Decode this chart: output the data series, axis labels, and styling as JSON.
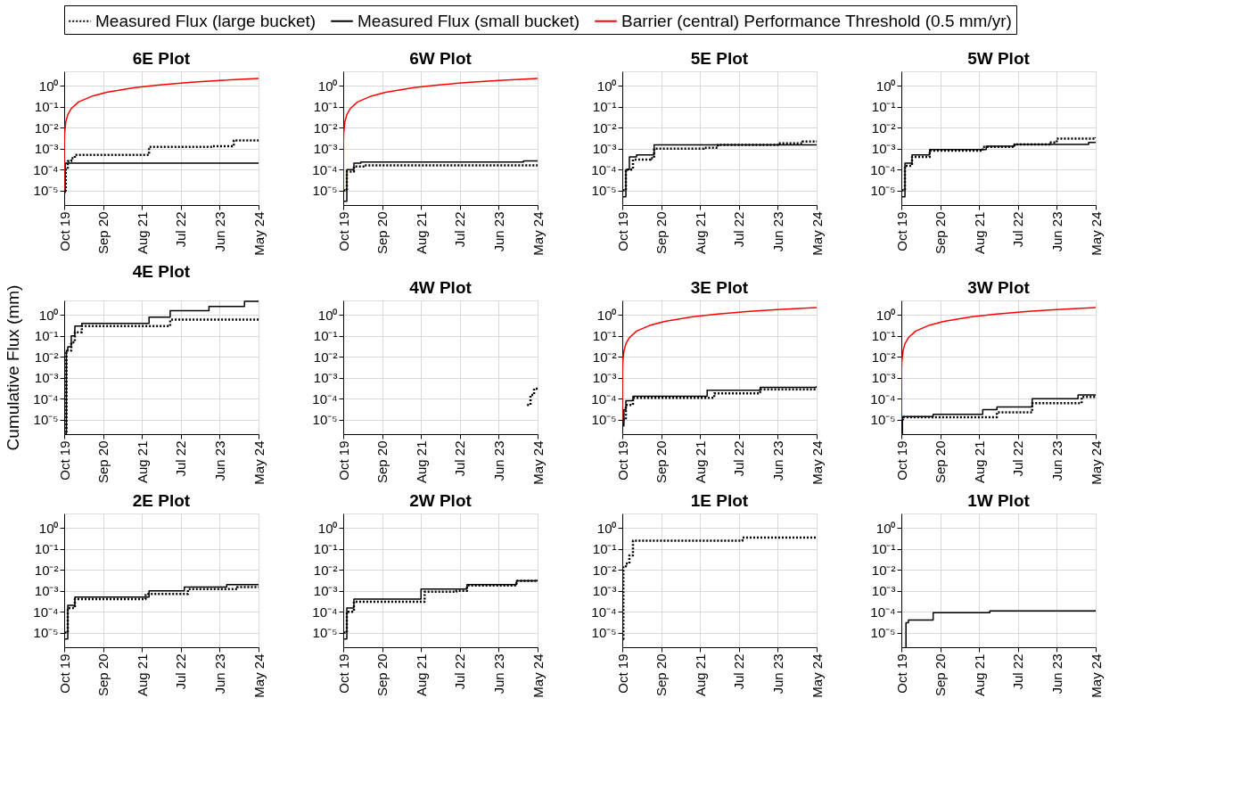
{
  "chart_data": [
    {
      "type": "step",
      "title": "6E Plot",
      "legend": "top",
      "grid": true,
      "log": "y",
      "xlim": [
        "2019-10",
        "2024-05"
      ],
      "ylim": [
        2e-06,
        5
      ],
      "xticks": [
        {
          "value": "2019-10",
          "label": "Oct 19"
        },
        {
          "value": "2020-09",
          "label": "Sep 20"
        },
        {
          "value": "2021-08",
          "label": "Aug 21"
        },
        {
          "value": "2022-07",
          "label": "Jul 22"
        },
        {
          "value": "2023-06",
          "label": "Jun 23"
        },
        {
          "value": "2024-05",
          "label": "May 24"
        }
      ],
      "yticks": [
        {
          "value": 1e-05,
          "label": "10⁻⁵"
        },
        {
          "value": 0.0001,
          "label": "10⁻⁴"
        },
        {
          "value": 0.001,
          "label": "10⁻³"
        },
        {
          "value": 0.01,
          "label": "10⁻²"
        },
        {
          "value": 0.1,
          "label": "10⁻¹"
        },
        {
          "value": 1,
          "label": "10⁰"
        }
      ],
      "series": [
        {
          "name": "Measured Flux (large bucket)",
          "color": "#000000",
          "line_style": "dotted",
          "x": [
            "2019-10-05",
            "2019-10-15",
            "2019-11",
            "2019-12",
            "2020-01",
            "2021-08",
            "2021-10",
            "2023-04",
            "2023-10",
            "2024-05"
          ],
          "values": [
            1e-05,
            0.0001,
            0.00025,
            0.00035,
            0.0005,
            0.0005,
            0.0012,
            0.0013,
            0.0025,
            0.0025
          ]
        },
        {
          "name": "Measured Flux (small bucket)",
          "color": "#000000",
          "line_style": "solid",
          "x": [
            "2019-10-03",
            "2019-10-10",
            "2024-05"
          ],
          "values": [
            8e-06,
            0.0002,
            0.0002
          ]
        },
        {
          "name": "Barrier (central) Performance Threshold (0.5 mm/yr)",
          "type": "line",
          "color": "#ff0000",
          "line_style": "solid",
          "x": [
            "2019-10-01",
            "2019-10-02",
            "2019-10-05",
            "2019-10-15",
            "2019-11-01",
            "2019-12-01",
            "2020-02-01",
            "2020-06-01",
            "2020-10-01",
            "2021-06-01",
            "2022-01-01",
            "2022-10-01",
            "2023-06-01",
            "2024-05-01"
          ],
          "values": [
            1e-05,
            0.0014,
            0.0055,
            0.019,
            0.042,
            0.083,
            0.17,
            0.33,
            0.5,
            0.83,
            1.13,
            1.5,
            1.83,
            2.29
          ]
        }
      ]
    },
    {
      "type": "step",
      "title": "6W Plot",
      "grid": true,
      "log": "y",
      "xlim": [
        "2019-10",
        "2024-05"
      ],
      "ylim": [
        2e-06,
        5
      ],
      "xticks": [
        {
          "value": "2019-10",
          "label": "Oct 19"
        },
        {
          "value": "2020-09",
          "label": "Sep 20"
        },
        {
          "value": "2021-08",
          "label": "Aug 21"
        },
        {
          "value": "2022-07",
          "label": "Jul 22"
        },
        {
          "value": "2023-06",
          "label": "Jun 23"
        },
        {
          "value": "2024-05",
          "label": "May 24"
        }
      ],
      "yticks": [
        {
          "value": 1e-05,
          "label": "10⁻⁵"
        },
        {
          "value": 0.0001,
          "label": "10⁻⁴"
        },
        {
          "value": 0.001,
          "label": "10⁻³"
        },
        {
          "value": 0.01,
          "label": "10⁻²"
        },
        {
          "value": 0.1,
          "label": "10⁻¹"
        },
        {
          "value": 1,
          "label": "10⁰"
        }
      ],
      "series": [
        {
          "color": "#000000",
          "line_style": "dotted",
          "x": [
            "2019-10-05",
            "2019-11",
            "2020-01",
            "2020-04",
            "2024-01",
            "2024-05"
          ],
          "values": [
            1e-05,
            8e-05,
            0.00014,
            0.00016,
            0.00016,
            0.0002
          ]
        },
        {
          "color": "#000000",
          "line_style": "solid",
          "x": [
            "2019-10-02",
            "2019-11",
            "2020-01",
            "2020-03",
            "2024-01",
            "2024-05"
          ],
          "values": [
            3e-06,
            0.0001,
            0.0002,
            0.00023,
            0.00026,
            0.00026
          ]
        },
        {
          "type": "line",
          "color": "#ff0000",
          "line_style": "solid",
          "x": [
            "2019-10-01",
            "2019-10-02",
            "2019-10-05",
            "2019-10-15",
            "2019-11-01",
            "2019-12-01",
            "2020-02-01",
            "2020-06-01",
            "2020-10-01",
            "2021-06-01",
            "2022-01-01",
            "2022-10-01",
            "2023-06-01",
            "2024-05-01"
          ],
          "values": [
            1e-05,
            0.0014,
            0.0055,
            0.019,
            0.042,
            0.083,
            0.17,
            0.33,
            0.5,
            0.83,
            1.13,
            1.5,
            1.83,
            2.29
          ]
        }
      ]
    },
    {
      "type": "step",
      "title": "5E Plot",
      "grid": true,
      "log": "y",
      "xlim": [
        "2019-10",
        "2024-05"
      ],
      "ylim": [
        2e-06,
        5
      ],
      "xticks": [
        {
          "value": "2019-10",
          "label": "Oct 19"
        },
        {
          "value": "2020-09",
          "label": "Sep 20"
        },
        {
          "value": "2021-08",
          "label": "Aug 21"
        },
        {
          "value": "2022-07",
          "label": "Jul 22"
        },
        {
          "value": "2023-06",
          "label": "Jun 23"
        },
        {
          "value": "2024-05",
          "label": "May 24"
        }
      ],
      "yticks": [
        {
          "value": 1e-05,
          "label": "10⁻⁵"
        },
        {
          "value": 0.0001,
          "label": "10⁻⁴"
        },
        {
          "value": 0.001,
          "label": "10⁻³"
        },
        {
          "value": 0.01,
          "label": "10⁻²"
        },
        {
          "value": 0.1,
          "label": "10⁻¹"
        },
        {
          "value": 1,
          "label": "10⁰"
        }
      ],
      "series": [
        {
          "color": "#000000",
          "line_style": "dotted",
          "x": [
            "2019-10-05",
            "2019-11",
            "2020-01",
            "2020-06",
            "2020-07",
            "2021-09",
            "2022-01",
            "2023-06",
            "2024-01",
            "2024-05"
          ],
          "values": [
            1e-05,
            0.0001,
            0.0003,
            0.00035,
            0.001,
            0.0011,
            0.0015,
            0.0018,
            0.0022,
            0.0023
          ]
        },
        {
          "color": "#000000",
          "line_style": "solid",
          "x": [
            "2019-10-01",
            "2019-11",
            "2019-12",
            "2020-02",
            "2020-06",
            "2020-07",
            "2024-05"
          ],
          "values": [
            5e-06,
            0.0001,
            0.0004,
            0.0005,
            0.0005,
            0.0015,
            0.0015
          ]
        }
      ]
    },
    {
      "type": "step",
      "title": "5W Plot",
      "grid": true,
      "log": "y",
      "xlim": [
        "2019-10",
        "2024-05"
      ],
      "ylim": [
        2e-06,
        5
      ],
      "xticks": [
        {
          "value": "2019-10",
          "label": "Oct 19"
        },
        {
          "value": "2020-09",
          "label": "Sep 20"
        },
        {
          "value": "2021-08",
          "label": "Aug 21"
        },
        {
          "value": "2022-07",
          "label": "Jul 22"
        },
        {
          "value": "2023-06",
          "label": "Jun 23"
        },
        {
          "value": "2024-05",
          "label": "May 24"
        }
      ],
      "yticks": [
        {
          "value": 1e-05,
          "label": "10⁻⁵"
        },
        {
          "value": 0.0001,
          "label": "10⁻⁴"
        },
        {
          "value": 0.001,
          "label": "10⁻³"
        },
        {
          "value": 0.01,
          "label": "10⁻²"
        },
        {
          "value": 0.1,
          "label": "10⁻¹"
        },
        {
          "value": 1,
          "label": "10⁰"
        }
      ],
      "series": [
        {
          "color": "#000000",
          "line_style": "dotted",
          "x": [
            "2019-10-05",
            "2019-11",
            "2020-01",
            "2020-06",
            "2021-06",
            "2021-09",
            "2022-06",
            "2023-04",
            "2023-06",
            "2024-05"
          ],
          "values": [
            1e-05,
            0.00015,
            0.0004,
            0.0008,
            0.0008,
            0.0012,
            0.0016,
            0.002,
            0.003,
            0.0035
          ]
        },
        {
          "color": "#000000",
          "line_style": "solid",
          "x": [
            "2019-10-01",
            "2019-11",
            "2020-01",
            "2020-06",
            "2021-06",
            "2021-10",
            "2022-06",
            "2024-01",
            "2024-03",
            "2024-05"
          ],
          "values": [
            5e-06,
            0.0002,
            0.0005,
            0.0009,
            0.0009,
            0.0013,
            0.0016,
            0.0016,
            0.002,
            0.002
          ]
        }
      ]
    },
    {
      "type": "step",
      "title": "4E Plot",
      "ylabel": "Cumulative Flux (mm)",
      "grid": true,
      "log": "y",
      "xlim": [
        "2019-10",
        "2024-05"
      ],
      "ylim": [
        2e-06,
        5
      ],
      "xticks": [
        {
          "value": "2019-10",
          "label": "Oct 19"
        },
        {
          "value": "2020-09",
          "label": "Sep 20"
        },
        {
          "value": "2021-08",
          "label": "Aug 21"
        },
        {
          "value": "2022-07",
          "label": "Jul 22"
        },
        {
          "value": "2023-06",
          "label": "Jun 23"
        },
        {
          "value": "2024-05",
          "label": "May 24"
        }
      ],
      "yticks": [
        {
          "value": 1e-05,
          "label": "10⁻⁵"
        },
        {
          "value": 0.0001,
          "label": "10⁻⁴"
        },
        {
          "value": 0.001,
          "label": "10⁻³"
        },
        {
          "value": 0.01,
          "label": "10⁻²"
        },
        {
          "value": 0.1,
          "label": "10⁻¹"
        },
        {
          "value": 1,
          "label": "10⁰"
        }
      ],
      "series": [
        {
          "color": "#000000",
          "line_style": "dotted",
          "x": [
            "2019-10-05",
            "2019-10-20",
            "2019-12",
            "2020-01",
            "2020-03",
            "2022-04",
            "2024-05"
          ],
          "values": [
            2e-06,
            0.02,
            0.05,
            0.15,
            0.3,
            0.6,
            0.6
          ]
        },
        {
          "color": "#000000",
          "line_style": "solid",
          "x": [
            "2019-10-05",
            "2019-10-20",
            "2019-11",
            "2019-12",
            "2020-01",
            "2020-03",
            "2021-10",
            "2022-04",
            "2023-03",
            "2024-01",
            "2024-05"
          ],
          "values": [
            2e-06,
            0.02,
            0.03,
            0.1,
            0.3,
            0.4,
            0.8,
            1.6,
            2.6,
            4.5,
            4.5
          ]
        }
      ]
    },
    {
      "type": "step",
      "title": "4W Plot",
      "grid": true,
      "log": "y",
      "xlim": [
        "2019-10",
        "2024-05"
      ],
      "ylim": [
        2e-06,
        5
      ],
      "xticks": [
        {
          "value": "2019-10",
          "label": "Oct 19"
        },
        {
          "value": "2020-09",
          "label": "Sep 20"
        },
        {
          "value": "2021-08",
          "label": "Aug 21"
        },
        {
          "value": "2022-07",
          "label": "Jul 22"
        },
        {
          "value": "2023-06",
          "label": "Jun 23"
        },
        {
          "value": "2024-05",
          "label": "May 24"
        }
      ],
      "yticks": [
        {
          "value": 1e-05,
          "label": "10⁻⁵"
        },
        {
          "value": 0.0001,
          "label": "10⁻⁴"
        },
        {
          "value": 0.001,
          "label": "10⁻³"
        },
        {
          "value": 0.01,
          "label": "10⁻²"
        },
        {
          "value": 0.1,
          "label": "10⁻¹"
        },
        {
          "value": 1,
          "label": "10⁰"
        }
      ],
      "series": [
        {
          "color": "#000000",
          "line_style": "dotted",
          "x": [
            "2024-02",
            "2024-03",
            "2024-04",
            "2024-05"
          ],
          "values": [
            5e-05,
            0.00015,
            0.0003,
            0.0003
          ]
        }
      ]
    },
    {
      "type": "step",
      "title": "3E Plot",
      "grid": true,
      "log": "y",
      "xlim": [
        "2019-10",
        "2024-05"
      ],
      "ylim": [
        2e-06,
        5
      ],
      "xticks": [
        {
          "value": "2019-10",
          "label": "Oct 19"
        },
        {
          "value": "2020-09",
          "label": "Sep 20"
        },
        {
          "value": "2021-08",
          "label": "Aug 21"
        },
        {
          "value": "2022-07",
          "label": "Jul 22"
        },
        {
          "value": "2023-06",
          "label": "Jun 23"
        },
        {
          "value": "2024-05",
          "label": "May 24"
        }
      ],
      "yticks": [
        {
          "value": 1e-05,
          "label": "10⁻⁵"
        },
        {
          "value": 0.0001,
          "label": "10⁻⁴"
        },
        {
          "value": 0.001,
          "label": "10⁻³"
        },
        {
          "value": 0.01,
          "label": "10⁻²"
        },
        {
          "value": 0.1,
          "label": "10⁻¹"
        },
        {
          "value": 1,
          "label": "10⁰"
        }
      ],
      "series": [
        {
          "color": "#000000",
          "line_style": "dotted",
          "x": [
            "2019-10-05",
            "2019-11",
            "2020-01",
            "2021-09",
            "2021-12",
            "2022-10",
            "2023-01",
            "2024-05"
          ],
          "values": [
            1e-05,
            5e-05,
            0.00011,
            0.00011,
            0.00018,
            0.00018,
            0.00028,
            0.0003
          ]
        },
        {
          "color": "#000000",
          "line_style": "solid",
          "x": [
            "2019-10-01",
            "2019-10-15",
            "2019-11",
            "2020-01",
            "2021-06",
            "2021-10",
            "2022-10",
            "2023-01",
            "2024-05"
          ],
          "values": [
            5e-06,
            3e-05,
            8e-05,
            0.00013,
            0.00013,
            0.00025,
            0.00025,
            0.00035,
            0.0004
          ]
        },
        {
          "type": "line",
          "color": "#ff0000",
          "line_style": "solid",
          "x": [
            "2019-10-01",
            "2019-10-02",
            "2019-10-05",
            "2019-10-15",
            "2019-11-01",
            "2019-12-01",
            "2020-02-01",
            "2020-06-01",
            "2020-10-01",
            "2021-06-01",
            "2022-01-01",
            "2022-10-01",
            "2023-06-01",
            "2024-05-01"
          ],
          "values": [
            1e-05,
            0.0014,
            0.0055,
            0.019,
            0.042,
            0.083,
            0.17,
            0.33,
            0.5,
            0.83,
            1.13,
            1.5,
            1.83,
            2.29
          ]
        }
      ]
    },
    {
      "type": "step",
      "title": "3W Plot",
      "grid": true,
      "log": "y",
      "xlim": [
        "2019-10",
        "2024-05"
      ],
      "ylim": [
        2e-06,
        5
      ],
      "xticks": [
        {
          "value": "2019-10",
          "label": "Oct 19"
        },
        {
          "value": "2020-09",
          "label": "Sep 20"
        },
        {
          "value": "2021-08",
          "label": "Aug 21"
        },
        {
          "value": "2022-07",
          "label": "Jul 22"
        },
        {
          "value": "2023-06",
          "label": "Jun 23"
        },
        {
          "value": "2024-05",
          "label": "May 24"
        }
      ],
      "yticks": [
        {
          "value": 1e-05,
          "label": "10⁻⁵"
        },
        {
          "value": 0.0001,
          "label": "10⁻⁴"
        },
        {
          "value": 0.001,
          "label": "10⁻³"
        },
        {
          "value": 0.01,
          "label": "10⁻²"
        },
        {
          "value": 0.1,
          "label": "10⁻¹"
        },
        {
          "value": 1,
          "label": "10⁰"
        }
      ],
      "series": [
        {
          "color": "#000000",
          "line_style": "dotted",
          "x": [
            "2019-10-05",
            "2019-10-15",
            "2021-12",
            "2022-01",
            "2022-10",
            "2022-11",
            "2023-11",
            "2024-01",
            "2024-05"
          ],
          "values": [
            1e-05,
            1.3e-05,
            1.3e-05,
            2.2e-05,
            2.2e-05,
            6e-05,
            6e-05,
            0.00012,
            0.00014
          ]
        },
        {
          "color": "#000000",
          "line_style": "solid",
          "x": [
            "2019-10-01",
            "2019-10-10",
            "2020-06",
            "2020-07",
            "2021-07",
            "2021-09",
            "2022-01",
            "2022-09",
            "2022-11",
            "2023-10",
            "2023-12",
            "2024-05"
          ],
          "values": [
            2e-06,
            1.4e-05,
            1.4e-05,
            1.8e-05,
            1.8e-05,
            3e-05,
            4e-05,
            4e-05,
            0.0001,
            0.0001,
            0.00015,
            0.00016
          ]
        },
        {
          "type": "line",
          "color": "#ff0000",
          "line_style": "solid",
          "x": [
            "2019-10-01",
            "2019-10-02",
            "2019-10-05",
            "2019-10-15",
            "2019-11-01",
            "2019-12-01",
            "2020-02-01",
            "2020-06-01",
            "2020-10-01",
            "2021-06-01",
            "2022-01-01",
            "2022-10-01",
            "2023-06-01",
            "2024-05-01"
          ],
          "values": [
            1e-05,
            0.0014,
            0.0055,
            0.019,
            0.042,
            0.083,
            0.17,
            0.33,
            0.5,
            0.83,
            1.13,
            1.5,
            1.83,
            2.29
          ]
        }
      ]
    },
    {
      "type": "step",
      "title": "2E Plot",
      "grid": true,
      "log": "y",
      "xlim": [
        "2019-10",
        "2024-05"
      ],
      "ylim": [
        2e-06,
        5
      ],
      "xticks": [
        {
          "value": "2019-10",
          "label": "Oct 19"
        },
        {
          "value": "2020-09",
          "label": "Sep 20"
        },
        {
          "value": "2021-08",
          "label": "Aug 21"
        },
        {
          "value": "2022-07",
          "label": "Jul 22"
        },
        {
          "value": "2023-06",
          "label": "Jun 23"
        },
        {
          "value": "2024-05",
          "label": "May 24"
        }
      ],
      "yticks": [
        {
          "value": 1e-05,
          "label": "10⁻⁵"
        },
        {
          "value": 0.0001,
          "label": "10⁻⁴"
        },
        {
          "value": 0.001,
          "label": "10⁻³"
        },
        {
          "value": 0.01,
          "label": "10⁻²"
        },
        {
          "value": 0.1,
          "label": "10⁻¹"
        },
        {
          "value": 1,
          "label": "10⁰"
        }
      ],
      "series": [
        {
          "color": "#000000",
          "line_style": "dotted",
          "x": [
            "2019-10-05",
            "2019-11",
            "2020-01",
            "2021-06",
            "2021-09",
            "2022-06",
            "2022-09",
            "2023-09",
            "2023-11",
            "2024-05"
          ],
          "values": [
            1e-05,
            0.00015,
            0.0004,
            0.0004,
            0.0007,
            0.0007,
            0.0012,
            0.0012,
            0.0015,
            0.0015
          ]
        },
        {
          "color": "#000000",
          "line_style": "solid",
          "x": [
            "2019-10-01",
            "2019-11",
            "2020-01",
            "2021-06",
            "2021-10",
            "2022-06",
            "2022-08",
            "2023-06",
            "2023-08",
            "2024-05"
          ],
          "values": [
            5e-06,
            0.0002,
            0.0005,
            0.0005,
            0.001,
            0.001,
            0.0015,
            0.0015,
            0.002,
            0.002
          ]
        }
      ]
    },
    {
      "type": "step",
      "title": "2W Plot",
      "grid": true,
      "log": "y",
      "xlim": [
        "2019-10",
        "2024-05"
      ],
      "ylim": [
        2e-06,
        5
      ],
      "xticks": [
        {
          "value": "2019-10",
          "label": "Oct 19"
        },
        {
          "value": "2020-09",
          "label": "Sep 20"
        },
        {
          "value": "2021-08",
          "label": "Aug 21"
        },
        {
          "value": "2022-07",
          "label": "Jul 22"
        },
        {
          "value": "2023-06",
          "label": "Jun 23"
        },
        {
          "value": "2024-05",
          "label": "May 24"
        }
      ],
      "yticks": [
        {
          "value": 1e-05,
          "label": "10⁻⁵"
        },
        {
          "value": 0.0001,
          "label": "10⁻⁴"
        },
        {
          "value": 0.001,
          "label": "10⁻³"
        },
        {
          "value": 0.01,
          "label": "10⁻²"
        },
        {
          "value": 0.1,
          "label": "10⁻¹"
        },
        {
          "value": 1,
          "label": "10⁰"
        }
      ],
      "series": [
        {
          "color": "#000000",
          "line_style": "dotted",
          "x": [
            "2019-10-05",
            "2019-11",
            "2020-01",
            "2021-06",
            "2021-09",
            "2022-06",
            "2022-09",
            "2023-09",
            "2023-11",
            "2024-05"
          ],
          "values": [
            1e-05,
            0.0001,
            0.0003,
            0.0003,
            0.0009,
            0.001,
            0.0018,
            0.0018,
            0.003,
            0.003
          ]
        },
        {
          "color": "#000000",
          "line_style": "solid",
          "x": [
            "2019-10-01",
            "2019-11",
            "2020-01",
            "2021-05",
            "2021-08",
            "2022-06",
            "2022-09",
            "2023-09",
            "2023-11",
            "2024-05"
          ],
          "values": [
            5e-06,
            0.00015,
            0.0004,
            0.0004,
            0.0012,
            0.0012,
            0.002,
            0.002,
            0.003,
            0.0035
          ]
        }
      ]
    },
    {
      "type": "step",
      "title": "1E Plot",
      "grid": true,
      "log": "y",
      "xlim": [
        "2019-10",
        "2024-05"
      ],
      "ylim": [
        2e-06,
        5
      ],
      "xticks": [
        {
          "value": "2019-10",
          "label": "Oct 19"
        },
        {
          "value": "2020-09",
          "label": "Sep 20"
        },
        {
          "value": "2021-08",
          "label": "Aug 21"
        },
        {
          "value": "2022-07",
          "label": "Jul 22"
        },
        {
          "value": "2023-06",
          "label": "Jun 23"
        },
        {
          "value": "2024-05",
          "label": "May 24"
        }
      ],
      "yticks": [
        {
          "value": 1e-05,
          "label": "10⁻⁵"
        },
        {
          "value": 0.0001,
          "label": "10⁻⁴"
        },
        {
          "value": 0.001,
          "label": "10⁻³"
        },
        {
          "value": 0.01,
          "label": "10⁻²"
        },
        {
          "value": 0.1,
          "label": "10⁻¹"
        },
        {
          "value": 1,
          "label": "10⁰"
        }
      ],
      "series": [
        {
          "color": "#000000",
          "line_style": "dotted",
          "x": [
            "2019-10-05",
            "2019-10-10",
            "2019-11",
            "2019-12",
            "2020-01",
            "2022-07",
            "2022-08",
            "2024-05"
          ],
          "values": [
            5e-06,
            0.015,
            0.02,
            0.05,
            0.25,
            0.25,
            0.35,
            0.35
          ]
        }
      ]
    },
    {
      "type": "step",
      "title": "1W Plot",
      "grid": true,
      "log": "y",
      "xlim": [
        "2019-10",
        "2024-05"
      ],
      "ylim": [
        2e-06,
        5
      ],
      "xticks": [
        {
          "value": "2019-10",
          "label": "Oct 19"
        },
        {
          "value": "2020-09",
          "label": "Sep 20"
        },
        {
          "value": "2021-08",
          "label": "Aug 21"
        },
        {
          "value": "2022-07",
          "label": "Jul 22"
        },
        {
          "value": "2023-06",
          "label": "Jun 23"
        },
        {
          "value": "2024-05",
          "label": "May 24"
        }
      ],
      "yticks": [
        {
          "value": 1e-05,
          "label": "10⁻⁵"
        },
        {
          "value": 0.0001,
          "label": "10⁻⁴"
        },
        {
          "value": 0.001,
          "label": "10⁻³"
        },
        {
          "value": 0.01,
          "label": "10⁻²"
        },
        {
          "value": 0.1,
          "label": "10⁻¹"
        },
        {
          "value": 1,
          "label": "10⁰"
        }
      ],
      "series": [
        {
          "color": "#000000",
          "line_style": "solid",
          "x": [
            "2019-11-05",
            "2019-11-10",
            "2019-12",
            "2020-06",
            "2020-07",
            "2021-09",
            "2021-11",
            "2024-05"
          ],
          "values": [
            2e-06,
            3e-05,
            4e-05,
            4e-05,
            9e-05,
            9e-05,
            0.00011,
            0.00012
          ]
        }
      ]
    }
  ]
}
